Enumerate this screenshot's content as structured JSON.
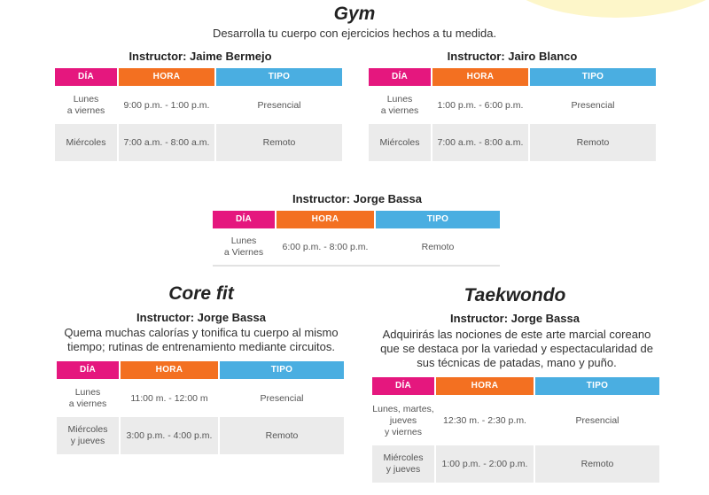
{
  "gym": {
    "title": "Gym",
    "subtitle": "Desarrolla tu cuerpo con ejercicios hechos a tu medida.",
    "tables": [
      {
        "instructor": "Instructor: Jaime Bermejo",
        "headers": [
          "DÍA",
          "HORA",
          "TIPO"
        ],
        "rows": [
          [
            "Lunes\na viernes",
            "9:00 p.m. - 1:00 p.m.",
            "Presencial"
          ],
          [
            "Miércoles",
            "7:00 a.m. - 8:00 a.m.",
            "Remoto"
          ]
        ]
      },
      {
        "instructor": "Instructor: Jairo Blanco",
        "headers": [
          "DÍA",
          "HORA",
          "TIPO"
        ],
        "rows": [
          [
            "Lunes\na viernes",
            "1:00 p.m. - 6:00 p.m.",
            "Presencial"
          ],
          [
            "Miércoles",
            "7:00 a.m. - 8:00 a.m.",
            "Remoto"
          ]
        ]
      },
      {
        "instructor": "Instructor: Jorge Bassa",
        "headers": [
          "DÍA",
          "HORA",
          "TIPO"
        ],
        "rows": [
          [
            "Lunes\na Viernes",
            "6:00 p.m. - 8:00 p.m.",
            "Remoto"
          ]
        ]
      }
    ]
  },
  "corefit": {
    "title": "Core fit",
    "instructor": "Instructor: Jorge Bassa",
    "description": "Quema muchas calorías y tonifica tu cuerpo al mismo tiempo; rutinas de entrenamiento mediante circuitos.",
    "headers": [
      "DÍA",
      "HORA",
      "TIPO"
    ],
    "rows": [
      [
        "Lunes\na viernes",
        "11:00 m. - 12:00 m",
        "Presencial"
      ],
      [
        "Miércoles\ny jueves",
        "3:00 p.m. - 4:00 p.m.",
        "Remoto"
      ]
    ]
  },
  "taekwondo": {
    "title": "Taekwondo",
    "instructor": "Instructor: Jorge Bassa",
    "description": "Adquirirás las nociones de este arte marcial coreano que se destaca por la variedad y espectacularidad de sus técnicas de patadas, mano y puño.",
    "headers": [
      "DÍA",
      "HORA",
      "TIPO"
    ],
    "rows": [
      [
        "Lunes, martes,\njueves\ny viernes",
        "12:30 m. - 2:30 p.m.",
        "Presencial"
      ],
      [
        "Miércoles\ny jueves",
        "1:00 p.m. - 2:00 p.m.",
        "Remoto"
      ]
    ]
  },
  "colors": {
    "dia_header": "#e5177e",
    "hora_header": "#f37021",
    "tipo_header": "#4aaee1",
    "row_shade": "#ebebeb"
  }
}
